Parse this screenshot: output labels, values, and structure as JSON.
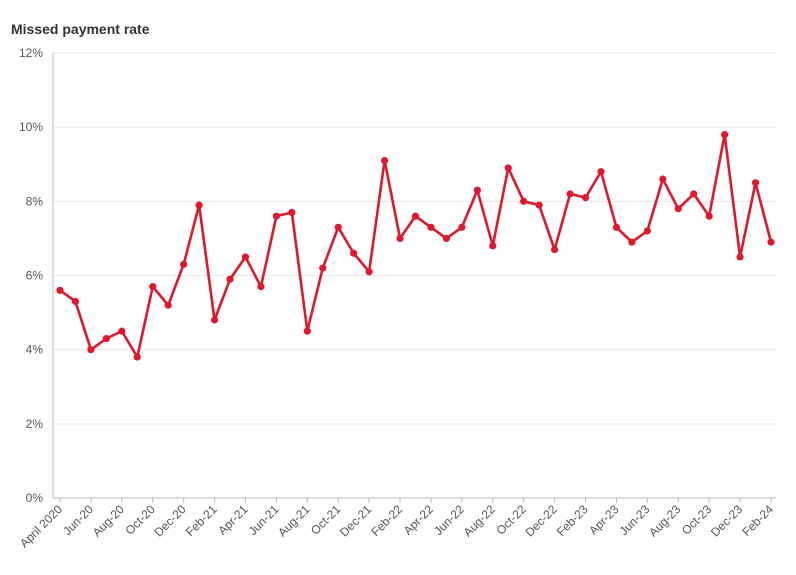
{
  "chart_data": {
    "type": "line",
    "title": "Missed payment rate",
    "xlabel": "",
    "ylabel": "",
    "ylim": [
      0,
      12
    ],
    "y_ticks": [
      "0%",
      "2%",
      "4%",
      "6%",
      "8%",
      "10%",
      "12%"
    ],
    "y_tick_values": [
      0,
      2,
      4,
      6,
      8,
      10,
      12
    ],
    "grid": true,
    "x_tick_labels": [
      "April 2020",
      "Jun-20",
      "Aug-20",
      "Oct-20",
      "Dec-20",
      "Feb-21",
      "Apr-21",
      "Jun-21",
      "Aug-21",
      "Oct-21",
      "Dec-21",
      "Feb-22",
      "Apr-22",
      "Jun-22",
      "Aug-22",
      "Oct-22",
      "Dec-22",
      "Feb-23",
      "Apr-23",
      "Jun-23",
      "Aug-23",
      "Oct-23",
      "Dec-23",
      "Feb-24"
    ],
    "categories": [
      "Apr-20",
      "May-20",
      "Jun-20",
      "Jul-20",
      "Aug-20",
      "Sep-20",
      "Oct-20",
      "Nov-20",
      "Dec-20",
      "Jan-21",
      "Feb-21",
      "Mar-21",
      "Apr-21",
      "May-21",
      "Jun-21",
      "Jul-21",
      "Aug-21",
      "Sep-21",
      "Oct-21",
      "Nov-21",
      "Dec-21",
      "Jan-22",
      "Feb-22",
      "Mar-22",
      "Apr-22",
      "May-22",
      "Jun-22",
      "Jul-22",
      "Aug-22",
      "Sep-22",
      "Oct-22",
      "Nov-22",
      "Dec-22",
      "Jan-23",
      "Feb-23",
      "Mar-23",
      "Apr-23",
      "May-23",
      "Jun-23",
      "Jul-23",
      "Aug-23",
      "Sep-23",
      "Oct-23",
      "Nov-23",
      "Dec-23",
      "Jan-24",
      "Feb-24"
    ],
    "series": [
      {
        "color": "#e0182d",
        "values": [
          5.6,
          5.3,
          4.0,
          4.3,
          4.5,
          3.8,
          5.7,
          5.2,
          6.3,
          7.9,
          4.8,
          5.9,
          6.5,
          5.7,
          7.6,
          7.7,
          4.5,
          6.2,
          7.3,
          6.6,
          6.1,
          9.1,
          7.0,
          7.6,
          7.3,
          7.0,
          7.3,
          8.3,
          6.8,
          8.9,
          8.0,
          7.9,
          6.7,
          8.2,
          8.1,
          8.8,
          7.3,
          6.9,
          7.2,
          8.6,
          7.8,
          8.2,
          7.6,
          9.8,
          6.5,
          8.5,
          6.9
        ]
      }
    ]
  }
}
